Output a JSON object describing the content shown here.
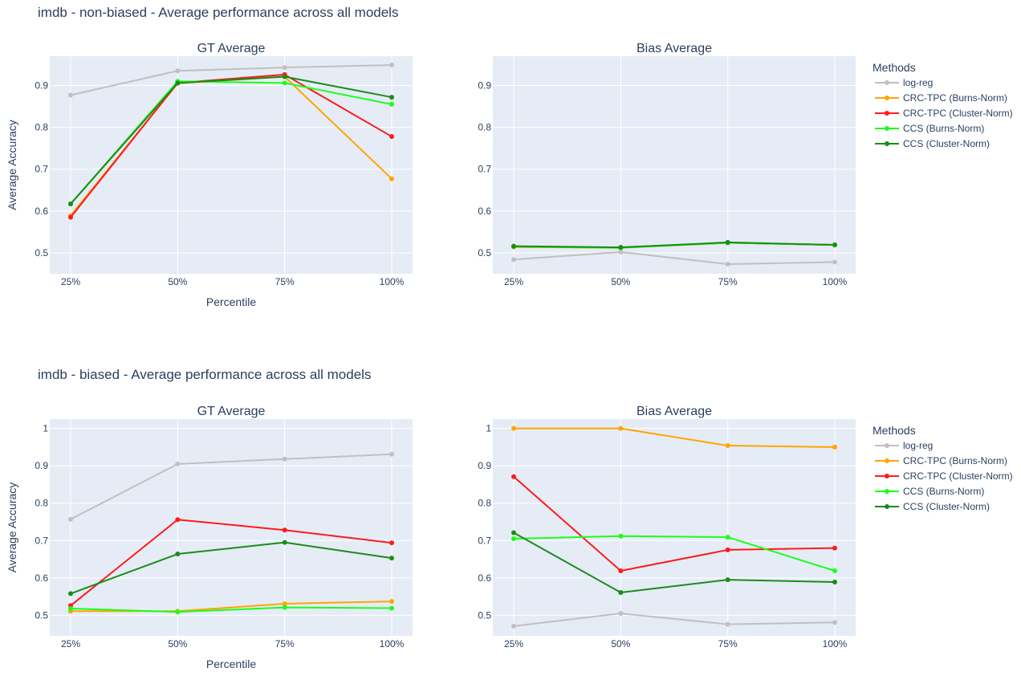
{
  "figure": {
    "categories": [
      "25%",
      "50%",
      "75%",
      "100%"
    ],
    "legend_title": "Methods",
    "methods": [
      {
        "name": "log-reg",
        "color": "#c0c0c0"
      },
      {
        "name": "CRC-TPC (Burns-Norm)",
        "color": "#ffa500"
      },
      {
        "name": "CRC-TPC (Cluster-Norm)",
        "color": "#ff1a1a"
      },
      {
        "name": "CCS (Burns-Norm)",
        "color": "#1aff1a"
      },
      {
        "name": "CCS (Cluster-Norm)",
        "color": "#1a8c1a"
      }
    ],
    "plot_bg": "#e5ecf6",
    "grid_color": "#ffffff"
  },
  "chart_data": [
    {
      "type": "line",
      "figure_title": "imdb - non-biased - Average performance across all models",
      "title": "GT Average",
      "xlabel": "Percentile",
      "ylabel": "Average Accuracy",
      "ylim": [
        0.45,
        0.97
      ],
      "yticks": [
        0.5,
        0.6,
        0.7,
        0.8,
        0.9
      ],
      "ytick_labels": [
        "0.5",
        "0.6",
        "0.7",
        "0.8",
        "0.9"
      ],
      "categories": [
        "25%",
        "50%",
        "75%",
        "100%"
      ],
      "series": [
        {
          "name": "log-reg",
          "values": [
            0.877,
            0.935,
            0.943,
            0.949
          ]
        },
        {
          "name": "CRC-TPC (Burns-Norm)",
          "values": [
            0.589,
            0.905,
            0.921,
            0.677
          ]
        },
        {
          "name": "CRC-TPC (Cluster-Norm)",
          "values": [
            0.585,
            0.906,
            0.926,
            0.778
          ]
        },
        {
          "name": "CCS (Burns-Norm)",
          "values": [
            0.617,
            0.91,
            0.906,
            0.855
          ]
        },
        {
          "name": "CCS (Cluster-Norm)",
          "values": [
            0.617,
            0.906,
            0.921,
            0.872
          ]
        }
      ]
    },
    {
      "type": "line",
      "title": "Bias Average",
      "xlabel": "",
      "ylabel": "",
      "ylim": [
        0.45,
        0.97
      ],
      "yticks": [
        0.5,
        0.6,
        0.7,
        0.8,
        0.9
      ],
      "ytick_labels": [
        "0.5",
        "0.6",
        "0.7",
        "0.8",
        "0.9"
      ],
      "categories": [
        "25%",
        "50%",
        "75%",
        "100%"
      ],
      "series": [
        {
          "name": "log-reg",
          "values": [
            0.484,
            0.502,
            0.473,
            0.478
          ]
        },
        {
          "name": "CRC-TPC (Burns-Norm)",
          "values": [
            0.514,
            0.512,
            0.524,
            0.519
          ]
        },
        {
          "name": "CRC-TPC (Cluster-Norm)",
          "values": [
            0.515,
            0.513,
            0.524,
            0.519
          ]
        },
        {
          "name": "CCS (Burns-Norm)",
          "values": [
            0.515,
            0.512,
            0.524,
            0.519
          ]
        },
        {
          "name": "CCS (Cluster-Norm)",
          "values": [
            0.516,
            0.513,
            0.525,
            0.519
          ]
        }
      ]
    },
    {
      "type": "line",
      "figure_title": "imdb - biased - Average performance across all models",
      "title": "GT Average",
      "xlabel": "Percentile",
      "ylabel": "Average Accuracy",
      "ylim": [
        0.445,
        1.025
      ],
      "yticks": [
        0.5,
        0.6,
        0.7,
        0.8,
        0.9,
        1
      ],
      "ytick_labels": [
        "0.5",
        "0.6",
        "0.7",
        "0.8",
        "0.9",
        "1"
      ],
      "categories": [
        "25%",
        "50%",
        "75%",
        "100%"
      ],
      "series": [
        {
          "name": "log-reg",
          "values": [
            0.757,
            0.905,
            0.918,
            0.931
          ]
        },
        {
          "name": "CRC-TPC (Burns-Norm)",
          "values": [
            0.511,
            0.511,
            0.531,
            0.537
          ]
        },
        {
          "name": "CRC-TPC (Cluster-Norm)",
          "values": [
            0.526,
            0.756,
            0.728,
            0.694
          ]
        },
        {
          "name": "CCS (Burns-Norm)",
          "values": [
            0.518,
            0.509,
            0.521,
            0.519
          ]
        },
        {
          "name": "CCS (Cluster-Norm)",
          "values": [
            0.558,
            0.664,
            0.695,
            0.653
          ]
        }
      ]
    },
    {
      "type": "line",
      "title": "Bias Average",
      "xlabel": "",
      "ylabel": "",
      "ylim": [
        0.445,
        1.025
      ],
      "yticks": [
        0.5,
        0.6,
        0.7,
        0.8,
        0.9,
        1
      ],
      "ytick_labels": [
        "0.5",
        "0.6",
        "0.7",
        "0.8",
        "0.9",
        "1"
      ],
      "categories": [
        "25%",
        "50%",
        "75%",
        "100%"
      ],
      "series": [
        {
          "name": "log-reg",
          "values": [
            0.471,
            0.505,
            0.476,
            0.481
          ]
        },
        {
          "name": "CRC-TPC (Burns-Norm)",
          "values": [
            1.0,
            1.0,
            0.954,
            0.95
          ]
        },
        {
          "name": "CRC-TPC (Cluster-Norm)",
          "values": [
            0.871,
            0.619,
            0.675,
            0.68
          ]
        },
        {
          "name": "CCS (Burns-Norm)",
          "values": [
            0.705,
            0.712,
            0.709,
            0.619
          ]
        },
        {
          "name": "CCS (Cluster-Norm)",
          "values": [
            0.721,
            0.561,
            0.595,
            0.589
          ]
        }
      ]
    }
  ]
}
